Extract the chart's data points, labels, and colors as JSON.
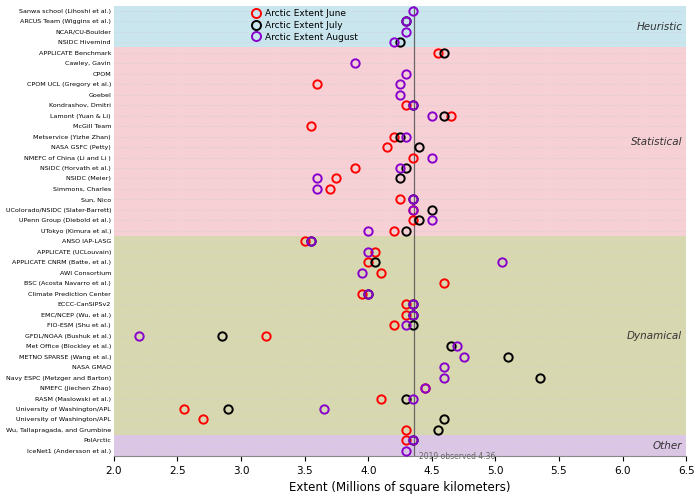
{
  "groups": [
    {
      "name": "Heuristic",
      "color": "#add8e6",
      "alpha": 0.65,
      "start": 0,
      "end": 4
    },
    {
      "name": "Statistical",
      "color": "#f4b8c1",
      "alpha": 0.65,
      "start": 4,
      "end": 22
    },
    {
      "name": "Dynamical",
      "color": "#b8b870",
      "alpha": 0.55,
      "start": 22,
      "end": 41
    },
    {
      "name": "Other",
      "color": "#c8a8d8",
      "alpha": 0.65,
      "start": 41,
      "end": 43
    }
  ],
  "teams": [
    "Sanwa school (Lihoshi et al.)",
    "ARCUS Team (Wiggins et al.)",
    "NCAR/CU-Boulder",
    "NSIDC Hivemind",
    "APPLICATE Benchmark",
    "Cawley, Gavin",
    "CPOM",
    "CPOM UCL (Gregory et al.)",
    "Goebel",
    "Kondrashov, Dmitri",
    "Lamont (Yuan & Li)",
    "McGill Team",
    "Metservice (Yizhe Zhan)",
    "NASA GSFC (Petty)",
    "NMEFC of China (Li and Li )",
    "NSIDC (Horvath et al.)",
    "NSIDC (Meier)",
    "Simmons, Charles",
    "Sun, Nico",
    "UColorado/NSIDC (Slater-Barrett)",
    "UPenn Group (Diebold et al.)",
    "UTokyo (Kimura et al.)",
    "ANSO IAP-LASG",
    "APPLICATE (UCLouvain)",
    "APPLICATE CNRM (Batte, et al.)",
    "AWI Consortium",
    "BSC (Acosta Navarro et al.)",
    "Climate Prediction Center",
    "ECCC-CanSIPSv2",
    "EMC/NCEP (Wu, et al.)",
    "FIO-ESM (Shu et al.)",
    "GFDL/NOAA (Bushuk et al.)",
    "Met Office (Blockley et al.)",
    "METNO SPARSE (Wang et al.)",
    "NASA GMAO",
    "Navy ESPC (Metzger and Barton)",
    "NMEFC (Jiechen Zhao)",
    "RASM (Maslowski et al.)",
    "University of Washington/APL",
    "University of Washington/APL",
    "Wu, Tallapragada, and Grumbine",
    "PolArctic",
    "IceNet1 (Andersson et al.)"
  ],
  "june": [
    null,
    null,
    null,
    null,
    4.55,
    null,
    null,
    3.6,
    null,
    4.3,
    4.65,
    3.55,
    4.2,
    4.15,
    4.35,
    3.9,
    3.75,
    3.7,
    4.25,
    4.35,
    4.35,
    4.2,
    3.5,
    4.05,
    4.0,
    4.1,
    4.6,
    3.95,
    4.3,
    4.3,
    4.2,
    3.2,
    null,
    null,
    null,
    null,
    4.45,
    4.1,
    2.55,
    2.7,
    4.3,
    4.3,
    null
  ],
  "july": [
    null,
    4.3,
    null,
    4.25,
    4.6,
    null,
    null,
    null,
    null,
    4.35,
    4.6,
    null,
    4.25,
    4.4,
    null,
    4.3,
    4.25,
    null,
    4.35,
    4.5,
    4.4,
    4.3,
    3.55,
    null,
    4.05,
    null,
    null,
    4.0,
    4.35,
    4.35,
    4.35,
    2.85,
    4.65,
    5.1,
    null,
    5.35,
    null,
    4.3,
    2.9,
    4.6,
    4.55,
    4.35,
    null
  ],
  "august": [
    4.35,
    4.3,
    4.3,
    4.2,
    null,
    3.9,
    4.3,
    4.25,
    4.25,
    4.35,
    4.5,
    null,
    4.3,
    null,
    4.5,
    4.25,
    3.6,
    3.6,
    4.35,
    4.35,
    4.5,
    4.0,
    3.55,
    4.0,
    5.05,
    3.95,
    null,
    4.0,
    4.35,
    4.35,
    4.3,
    2.2,
    4.7,
    4.75,
    4.6,
    4.6,
    4.45,
    4.35,
    3.65,
    null,
    null,
    4.35,
    4.3
  ],
  "observed_line": 4.36,
  "xlabel": "Extent (Millions of square kilometers)",
  "xlim": [
    2.0,
    6.5
  ],
  "observed_label": "2019 observed 4.36",
  "legend_items": [
    {
      "label": "Arctic Extent June",
      "color": "red"
    },
    {
      "label": "Arctic Extent July",
      "color": "black"
    },
    {
      "label": "Arctic Extent August",
      "color": "#8800cc"
    }
  ],
  "bg_color": "white",
  "grid_color": "#cccccc",
  "marker_size": 6,
  "marker_lw": 1.4
}
